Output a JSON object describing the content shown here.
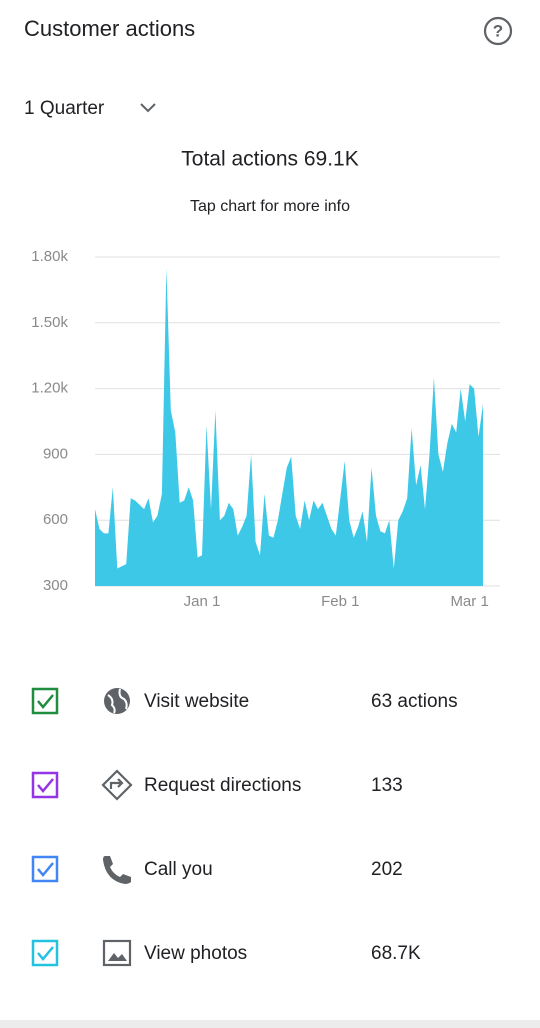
{
  "header": {
    "title": "Customer actions"
  },
  "period": {
    "label": "1 Quarter"
  },
  "chart_data": {
    "type": "area",
    "title": "Total actions 69.1K",
    "subtitle": "Tap chart for more info",
    "color": "#3ec8e8",
    "categories": [
      null,
      null,
      null,
      null,
      null,
      null,
      null,
      null,
      null,
      null,
      null,
      null,
      null,
      null,
      null,
      null,
      null,
      null,
      null,
      null,
      null,
      null,
      null,
      null,
      "Jan 1",
      null,
      null,
      null,
      null,
      null,
      null,
      null,
      null,
      null,
      null,
      null,
      null,
      null,
      null,
      null,
      null,
      null,
      null,
      null,
      null,
      null,
      null,
      null,
      null,
      null,
      null,
      null,
      null,
      null,
      null,
      "Feb 1",
      null,
      null,
      null,
      null,
      null,
      null,
      null,
      null,
      null,
      null,
      null,
      null,
      null,
      null,
      null,
      null,
      null,
      null,
      null,
      null,
      null,
      null,
      null,
      null,
      null,
      null,
      null,
      null,
      "Mar 1",
      null,
      null,
      null
    ],
    "values": [
      650,
      560,
      540,
      540,
      750,
      380,
      390,
      400,
      700,
      690,
      670,
      650,
      700,
      590,
      620,
      720,
      1750,
      1100,
      1000,
      680,
      690,
      750,
      690,
      430,
      440,
      1030,
      650,
      1100,
      600,
      620,
      680,
      650,
      530,
      570,
      620,
      900,
      500,
      440,
      720,
      530,
      520,
      600,
      720,
      840,
      890,
      620,
      560,
      690,
      600,
      690,
      650,
      680,
      620,
      560,
      530,
      700,
      870,
      600,
      520,
      570,
      640,
      500,
      840,
      620,
      550,
      540,
      600,
      380,
      600,
      640,
      700,
      1020,
      760,
      850,
      650,
      900,
      1250,
      900,
      820,
      950,
      1040,
      1000,
      1200,
      1050,
      1220,
      1200,
      980,
      1130
    ],
    "ylim": [
      300,
      1800
    ],
    "yticks": [
      300,
      600,
      900,
      {
        "value": 1200,
        "label": "1.20k"
      },
      {
        "value": 1500,
        "label": "1.50k"
      },
      {
        "value": 1800,
        "label": "1.80k"
      }
    ],
    "grid": true
  },
  "actions": [
    {
      "name": "Visit website",
      "value": "63 actions",
      "color": "#1e8e3e"
    },
    {
      "name": "Request directions",
      "value": "133",
      "color": "#9334e6"
    },
    {
      "name": "Call you",
      "value": "202",
      "color": "#4285f4"
    },
    {
      "name": "View photos",
      "value": "68.7K",
      "color": "#24c1e0"
    }
  ]
}
